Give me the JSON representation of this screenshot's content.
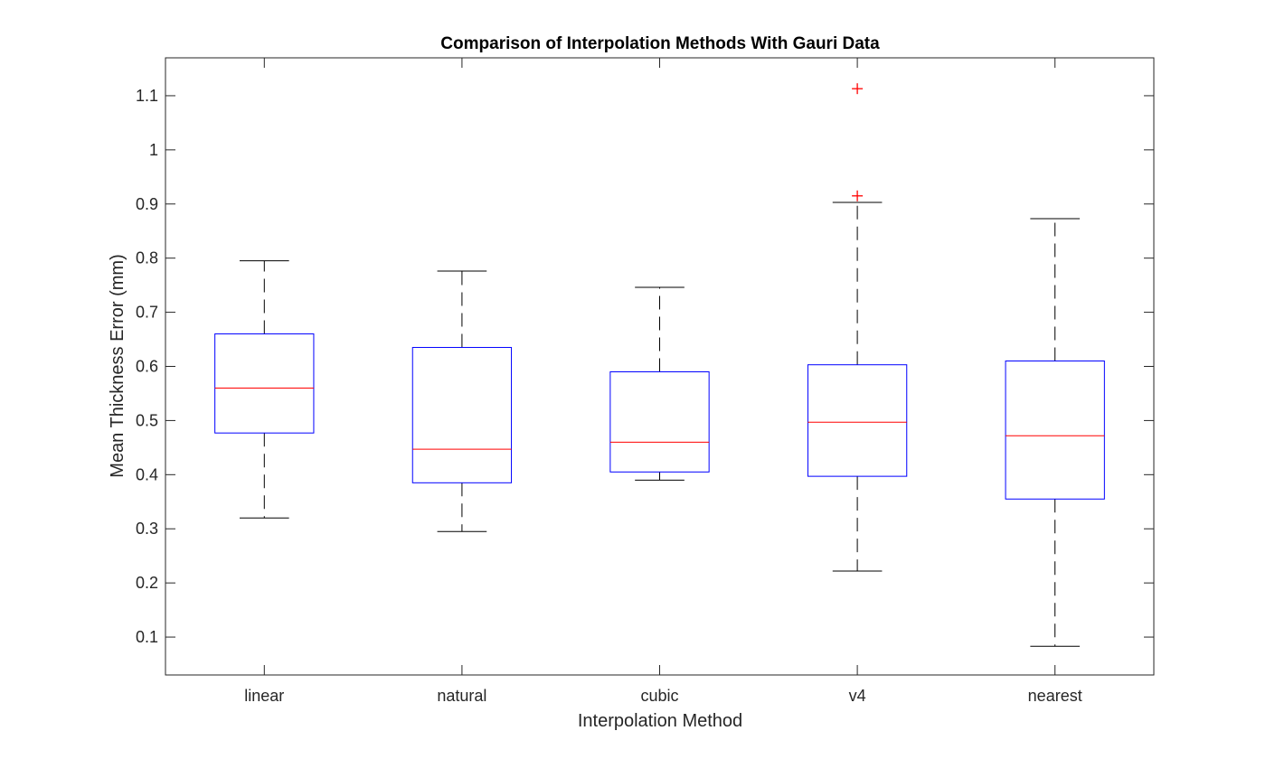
{
  "chart_data": {
    "type": "boxplot",
    "title": "Comparison of Interpolation Methods With Gauri Data",
    "xlabel": "Interpolation Method",
    "ylabel": "Mean Thickness Error (mm)",
    "ylim": [
      0.03,
      1.17
    ],
    "yticks": [
      "0.1",
      "0.2",
      "0.3",
      "0.4",
      "0.5",
      "0.6",
      "0.7",
      "0.8",
      "0.9",
      "1",
      "1.1"
    ],
    "ytick_values": [
      0.1,
      0.2,
      0.3,
      0.4,
      0.5,
      0.6,
      0.7,
      0.8,
      0.9,
      1.0,
      1.1
    ],
    "categories": [
      "linear",
      "natural",
      "cubic",
      "v4",
      "nearest"
    ],
    "boxes": [
      {
        "whisker_low": 0.32,
        "q1": 0.477,
        "median": 0.56,
        "q3": 0.66,
        "whisker_high": 0.795,
        "outliers": []
      },
      {
        "whisker_low": 0.295,
        "q1": 0.385,
        "median": 0.447,
        "q3": 0.635,
        "whisker_high": 0.776,
        "outliers": []
      },
      {
        "whisker_low": 0.39,
        "q1": 0.405,
        "median": 0.46,
        "q3": 0.59,
        "whisker_high": 0.746,
        "outliers": []
      },
      {
        "whisker_low": 0.222,
        "q1": 0.397,
        "median": 0.497,
        "q3": 0.603,
        "whisker_high": 0.903,
        "outliers": [
          0.915,
          1.113
        ]
      },
      {
        "whisker_low": 0.083,
        "q1": 0.355,
        "median": 0.472,
        "q3": 0.61,
        "whisker_high": 0.873,
        "outliers": []
      }
    ],
    "grid": false,
    "colors": {
      "box": "#0000ff",
      "median": "#ff0000",
      "whisker": "#000000",
      "outlier": "#ff0000",
      "axes": "#262626"
    }
  }
}
